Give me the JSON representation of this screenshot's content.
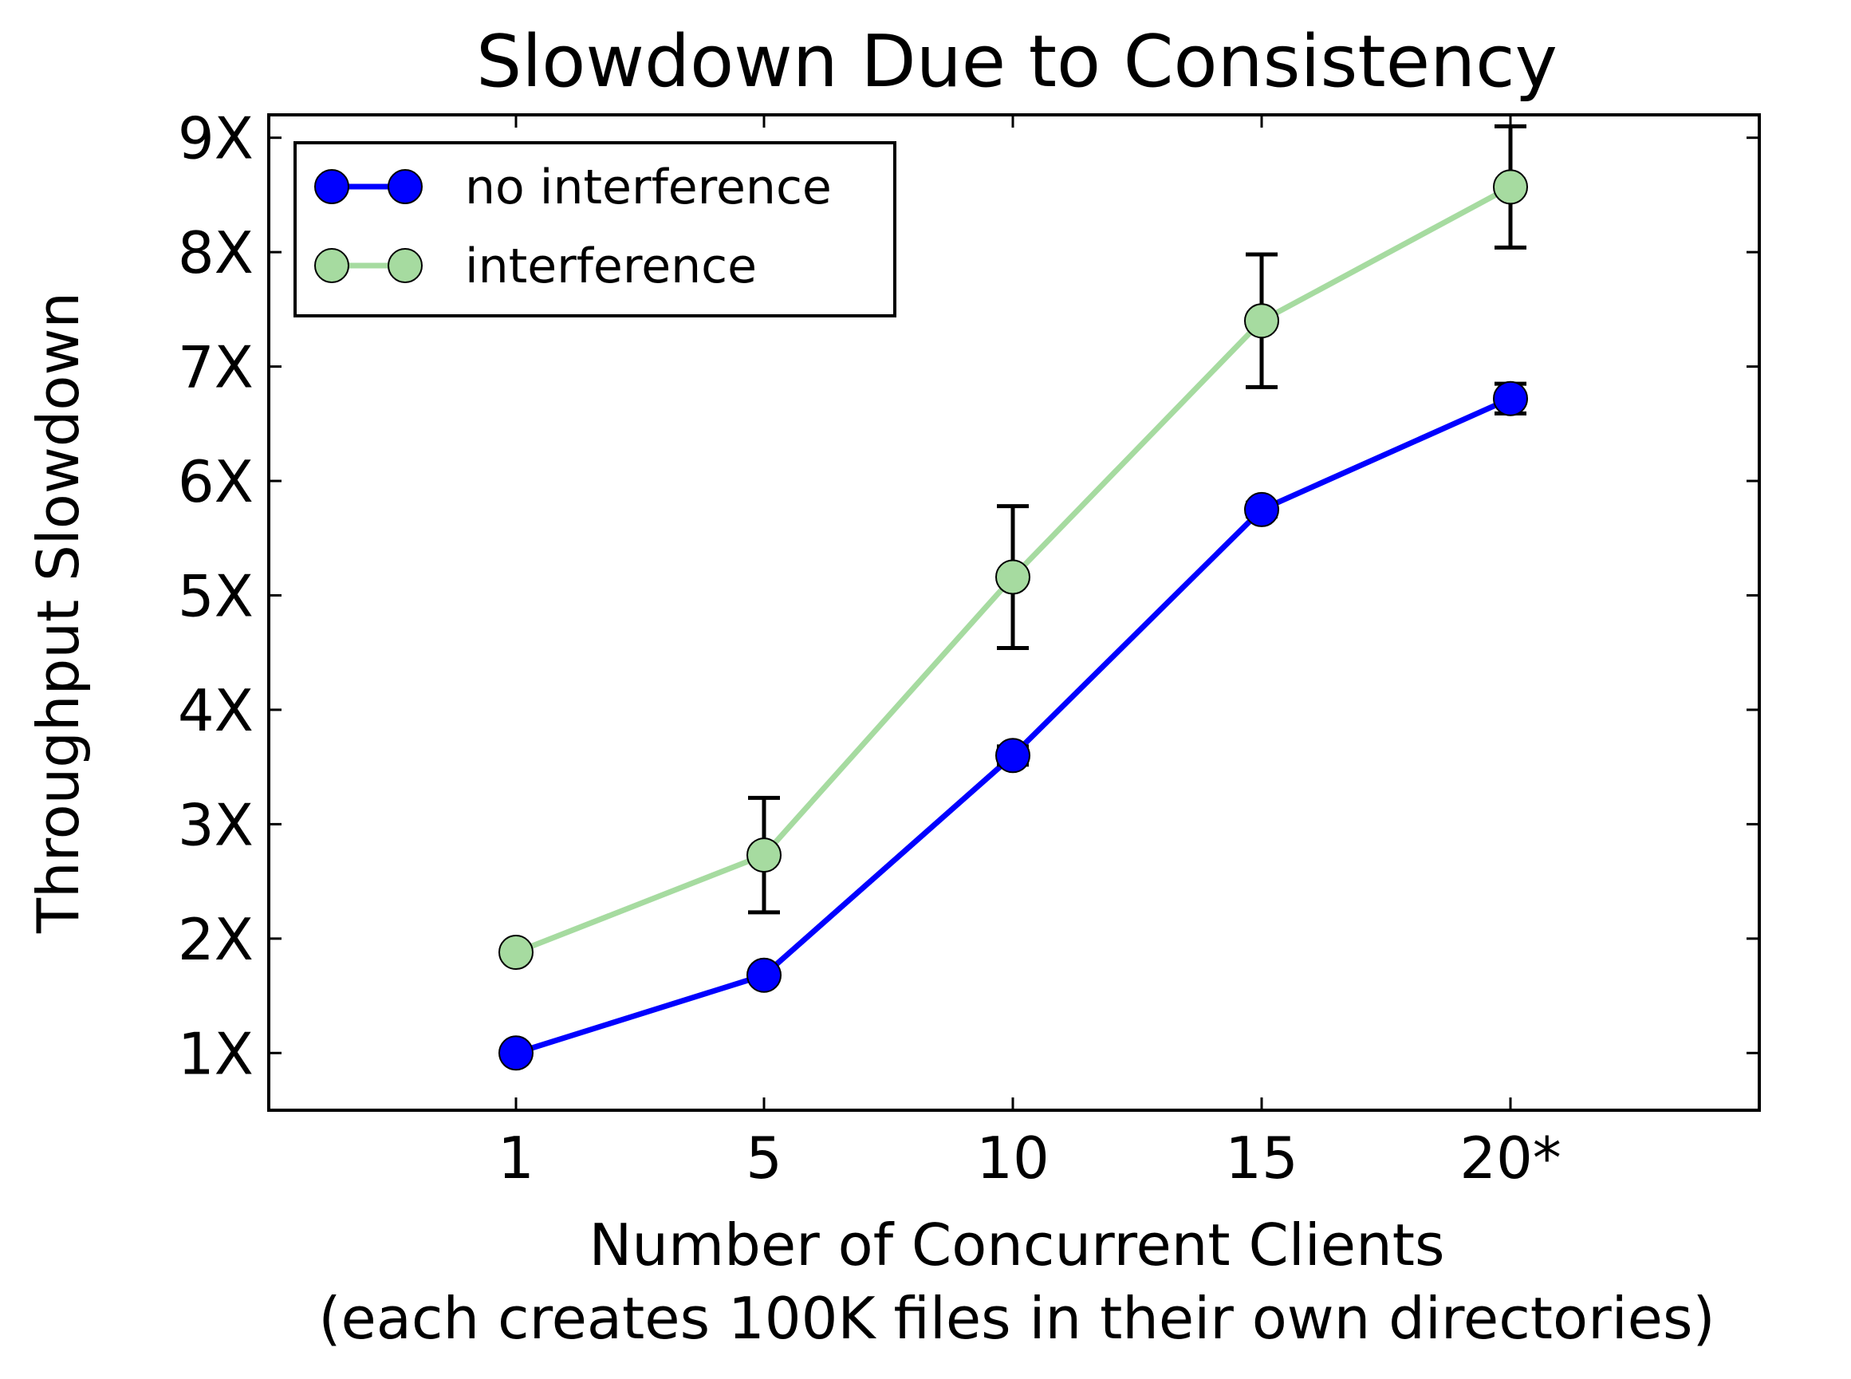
{
  "chart_data": {
    "type": "line",
    "title": "Slowdown Due to Consistency",
    "xlabel": "Number of Concurrent Clients",
    "xlabel_line2": "(each creates 100K files in their own directories)",
    "ylabel": "Throughput Slowdown",
    "categories": [
      "1",
      "5",
      "10",
      "15",
      "20*"
    ],
    "yticks": [
      "1X",
      "2X",
      "3X",
      "4X",
      "5X",
      "6X",
      "7X",
      "8X",
      "9X"
    ],
    "ylim": [
      0.5,
      9.2
    ],
    "grid": false,
    "legend_position": "top-left",
    "series": [
      {
        "name": "no interference",
        "color": "#0000ff",
        "values": [
          1.0,
          1.68,
          3.6,
          5.75,
          6.72
        ],
        "error": [
          0.02,
          0.03,
          0.08,
          0.06,
          0.13
        ]
      },
      {
        "name": "interference",
        "color": "#a6dba0",
        "values": [
          1.88,
          2.73,
          5.16,
          7.4,
          8.57
        ],
        "error": [
          0.02,
          0.5,
          0.62,
          0.58,
          0.53
        ]
      }
    ]
  }
}
